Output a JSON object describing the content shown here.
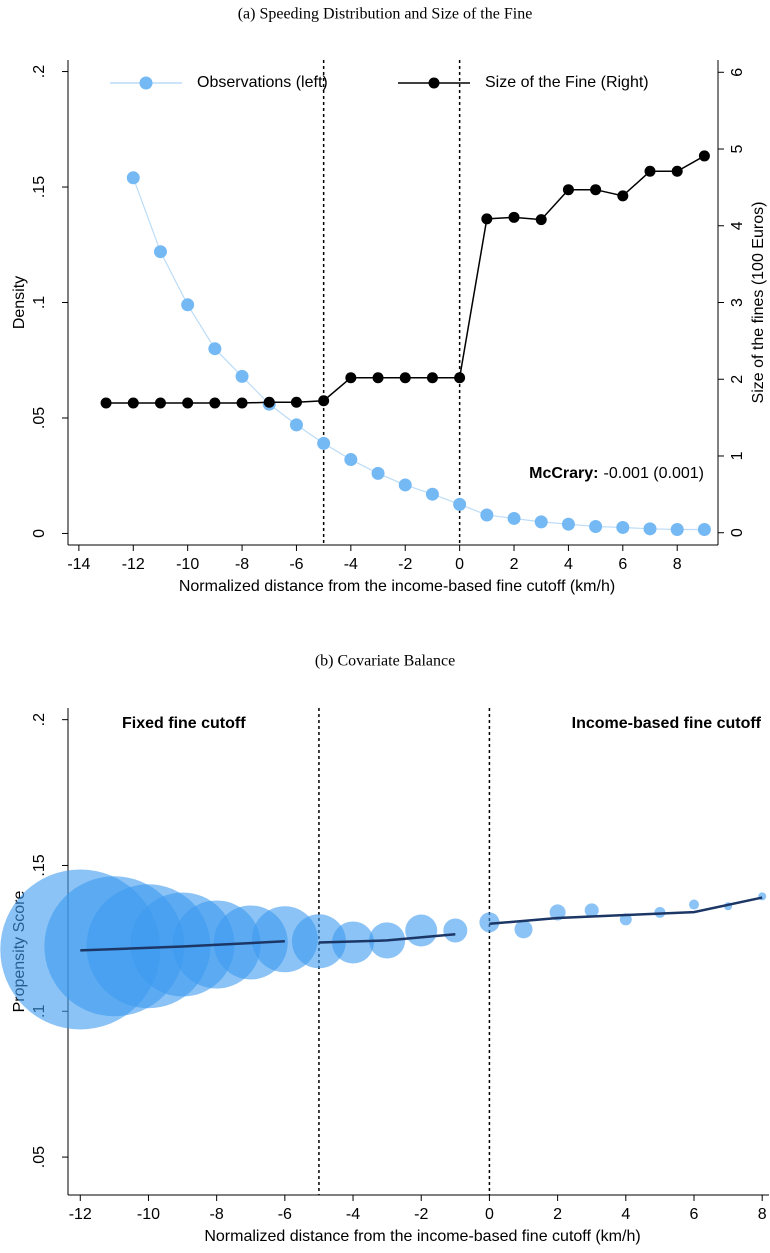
{
  "chart_data": [
    {
      "type": "line",
      "title": "(a) Speeding Distribution and Size of the Fine",
      "xlabel": "Normalized distance from the income-based fine cutoff (km/h)",
      "ylabel": "Density",
      "y2label": "Size of the fines (100 Euros)",
      "series": [
        {
          "name": "Observations (left)",
          "color": "#74b9f4",
          "line_color": "#bcdcf7",
          "x": [
            -12,
            -11,
            -10,
            -9,
            -8,
            -7,
            -6,
            -5,
            -4,
            -3,
            -2,
            -1,
            0,
            1,
            2,
            3,
            4,
            5,
            6,
            7,
            8,
            9
          ],
          "values": [
            0.154,
            0.122,
            0.099,
            0.08,
            0.068,
            0.056,
            0.047,
            0.039,
            0.032,
            0.026,
            0.021,
            0.017,
            0.0126,
            0.008,
            0.0065,
            0.005,
            0.004,
            0.003,
            0.0026,
            0.002,
            0.0017,
            0.0017
          ]
        },
        {
          "name": "Size of the Fine (Right)",
          "color": "#000000",
          "line_color": "#000000",
          "axis": "y2",
          "x": [
            -13,
            -12,
            -11,
            -10,
            -9,
            -8,
            -7,
            -6,
            -5,
            -4,
            -3,
            -2,
            -1,
            0,
            1,
            2,
            3,
            4,
            5,
            6,
            7,
            8,
            9
          ],
          "values": [
            1.69,
            1.69,
            1.69,
            1.69,
            1.69,
            1.69,
            1.7,
            1.7,
            1.72,
            2.02,
            2.02,
            2.02,
            2.02,
            2.02,
            4.09,
            4.11,
            4.08,
            4.47,
            4.47,
            4.39,
            4.71,
            4.71,
            4.91
          ]
        }
      ],
      "xlim": [
        -14.4,
        9.5
      ],
      "xticks": [
        -14,
        -12,
        -10,
        -8,
        -6,
        -4,
        -2,
        0,
        2,
        4,
        6,
        8
      ],
      "ylim": [
        -0.005,
        0.205
      ],
      "yticks": [
        0,
        {
          "value": 0.05,
          "label": ".05"
        },
        {
          "value": 0.1,
          "label": ".1"
        },
        {
          "value": 0.15,
          "label": ".15"
        },
        {
          "value": 0.2,
          "label": ".2"
        }
      ],
      "y2lim": [
        -0.16,
        6.16
      ],
      "y2ticks": [
        0,
        1,
        2,
        3,
        4,
        5,
        6
      ],
      "vlines": [
        -5,
        0
      ],
      "legend": "top",
      "annotation": {
        "label": "McCrary:",
        "text": "-0.001 (0.001)"
      }
    },
    {
      "type": "bubble",
      "title": "(b) Covariate Balance",
      "xlabel": "Normalized distance from the income-based fine cutoff (km/h)",
      "ylabel": "Propensity Score",
      "color": "#3d9bf0",
      "x": [
        -12,
        -11,
        -10,
        -9,
        -8,
        -7,
        -6,
        -5,
        -4,
        -3,
        -2,
        -1,
        0,
        1,
        2,
        3,
        4,
        5,
        6,
        7,
        8
      ],
      "values": [
        0.1212,
        0.1223,
        0.1223,
        0.1229,
        0.1229,
        0.1236,
        0.1247,
        0.124,
        0.1236,
        0.1243,
        0.1277,
        0.1277,
        0.1305,
        0.1281,
        0.1339,
        0.1346,
        0.1315,
        0.1339,
        0.1366,
        0.136,
        0.1394
      ],
      "sizes": [
        100,
        76.6,
        60,
        42.3,
        30.3,
        21.4,
        17,
        11.4,
        6.9,
        5.1,
        4,
        2.25,
        1.56,
        1.27,
        1,
        0.77,
        0.56,
        0.47,
        0.39,
        0.25,
        0.25
      ],
      "fit_color": "#1c3766",
      "fit": [
        {
          "x": [
            -12,
            -9,
            -6
          ],
          "values": [
            0.1209,
            0.1222,
            0.124
          ]
        },
        {
          "x": [
            -5,
            -3,
            -1
          ],
          "values": [
            0.1236,
            0.1243,
            0.1264
          ]
        },
        {
          "x": [
            0,
            2,
            4,
            6,
            8
          ],
          "values": [
            0.13,
            0.132,
            0.133,
            0.134,
            0.139
          ]
        }
      ],
      "xlim": [
        -12.36,
        8.2
      ],
      "xticks": [
        -12,
        -10,
        -8,
        -6,
        -4,
        -2,
        0,
        2,
        4,
        6,
        8
      ],
      "ylim": [
        0.037,
        0.204
      ],
      "yticks": [
        {
          "value": 0.05,
          "label": ".05"
        },
        {
          "value": 0.1,
          "label": ".1"
        },
        {
          "value": 0.15,
          "label": ".15"
        },
        {
          "value": 0.2,
          "label": ".2"
        }
      ],
      "vlines": [
        -5,
        0
      ],
      "annotations": [
        {
          "text": "Fixed fine cutoff"
        },
        {
          "text": "Income-based fine cutoff"
        }
      ]
    }
  ]
}
